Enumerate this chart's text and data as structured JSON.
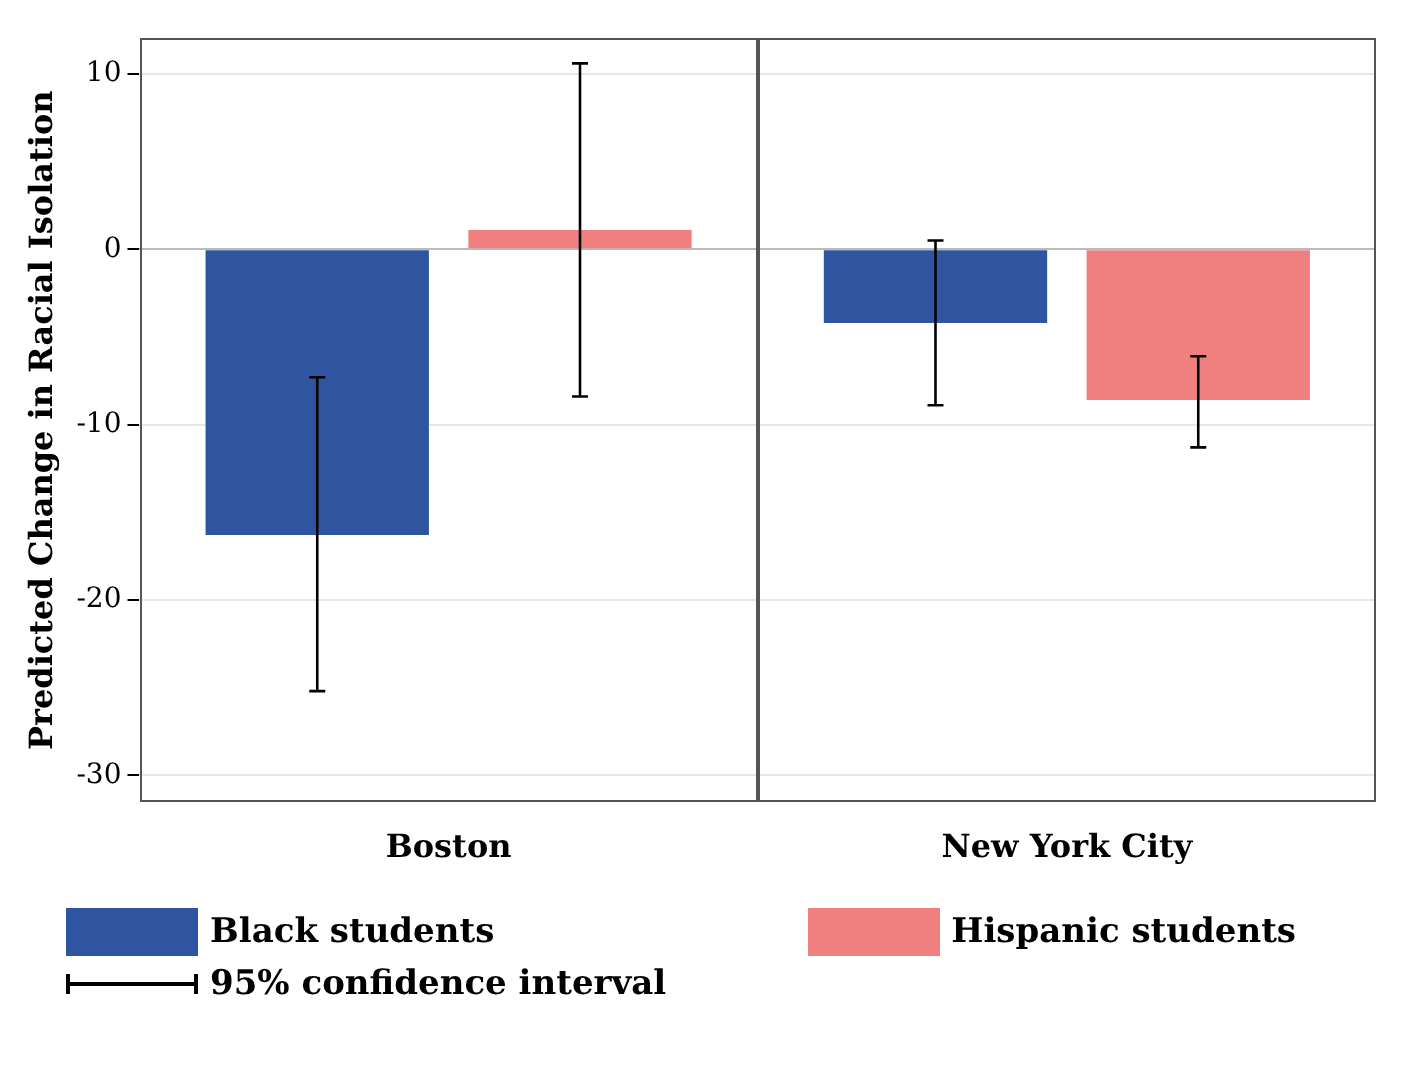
{
  "chart_data": {
    "type": "bar",
    "ylabel": "Predicted Change in Racial Isolation",
    "categories": [
      "Boston",
      "New York City"
    ],
    "series": [
      {
        "name": "Black students",
        "color": "#2f55a0",
        "values": [
          -16.3,
          -4.2
        ],
        "errors": [
          [
            -25.2,
            -7.3
          ],
          [
            -8.9,
            0.5
          ]
        ]
      },
      {
        "name": "Hispanic students",
        "color": "#f08080",
        "values": [
          1.1,
          -8.6
        ],
        "errors": [
          [
            -8.4,
            10.6
          ],
          [
            -11.3,
            -6.1
          ]
        ]
      }
    ],
    "ylim": [
      -31.5,
      12
    ],
    "yticks": [
      -30,
      -20,
      -10,
      0,
      10
    ],
    "grid": "y",
    "legend": "bottom",
    "annotations": [
      "95% confidence interval"
    ]
  }
}
